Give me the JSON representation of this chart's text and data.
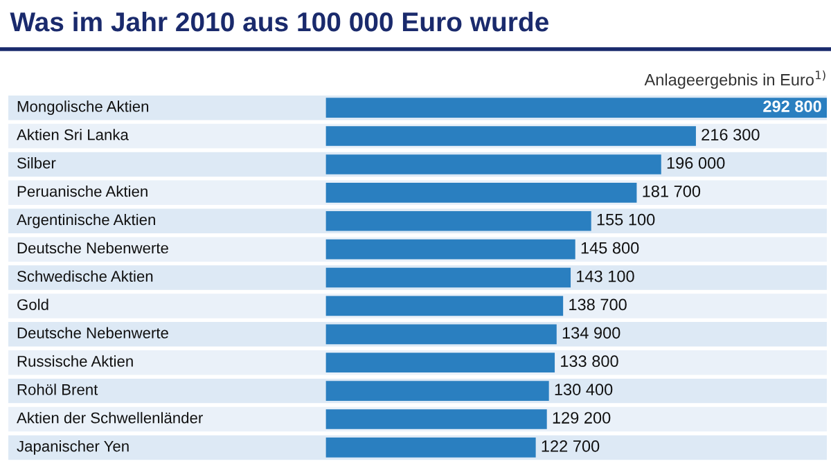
{
  "chart_data": {
    "type": "bar",
    "orientation": "horizontal",
    "title": "Was im Jahr 2010 aus 100 000 Euro wurde",
    "xlabel": "Anlageergebnis in Euro$^{1)}$",
    "categories": [
      "Mongolische Aktien",
      "Aktien Sri Lanka",
      "Silber",
      "Peruanische Aktien",
      "Argentinische Aktien",
      "Deutsche Nebenwerte",
      "Schwedische Aktien",
      "Gold",
      "Deutsche Nebenwerte",
      "Russische Aktien",
      "Rohöl Brent",
      "Aktien der Schwellenländer",
      "Japanischer Yen"
    ],
    "values": [
      292800,
      216300,
      196000,
      181700,
      155100,
      145800,
      143100,
      138700,
      134900,
      133800,
      130400,
      129200,
      122700
    ],
    "value_labels": [
      "292 800",
      "216 300",
      "196 000",
      "181 700",
      "155 100",
      "145 800",
      "143 100",
      "138 700",
      "134 900",
      "133 800",
      "130 400",
      "129 200",
      "122 700"
    ],
    "color": "#2a7fc0"
  }
}
